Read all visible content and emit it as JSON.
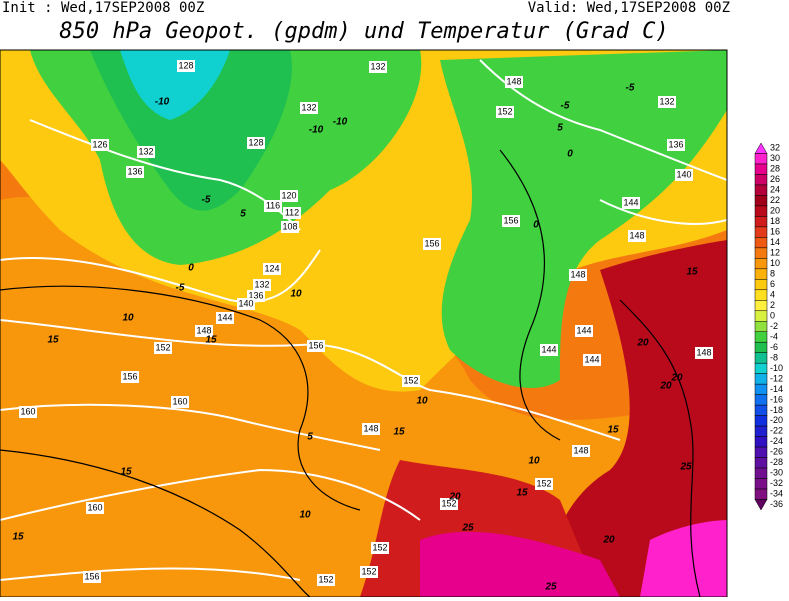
{
  "header": {
    "init": "Init : Wed,17SEP2008 00Z",
    "valid": "Valid: Wed,17SEP2008 00Z",
    "title": "850 hPa Geopot. (gpdm) und Temperatur (Grad C)"
  },
  "colorbar": {
    "levels": [
      32,
      30,
      28,
      26,
      24,
      22,
      20,
      18,
      16,
      14,
      12,
      10,
      8,
      6,
      4,
      2,
      0,
      -2,
      -4,
      -6,
      -8,
      -10,
      -12,
      -14,
      -16,
      -18,
      -20,
      -22,
      -24,
      -26,
      -28,
      -30,
      -32,
      -34,
      -36
    ],
    "colors": [
      "#ff33ff",
      "#ff22cc",
      "#e6008c",
      "#cc0066",
      "#b3003a",
      "#a0001a",
      "#b80a1a",
      "#d01c1c",
      "#e23a1a",
      "#ee5a14",
      "#f47a10",
      "#f8960c",
      "#fbb00a",
      "#fdca10",
      "#ffe020",
      "#fff040",
      "#d8f040",
      "#90e040",
      "#40d040",
      "#20c050",
      "#10c090",
      "#10d0d0",
      "#10b0e8",
      "#1090f0",
      "#1070f0",
      "#1050e8",
      "#1030e0",
      "#2020d0",
      "#3010c0",
      "#5010b0",
      "#6010a0",
      "#701090",
      "#7a1088",
      "#801080",
      "#600060"
    ]
  },
  "geopotential_labels": [
    128,
    132,
    126,
    132,
    136,
    128,
    120,
    116,
    112,
    108,
    124,
    132,
    136,
    140,
    144,
    148,
    152,
    156,
    160,
    160,
    160,
    156,
    156,
    152,
    148,
    152,
    152,
    148,
    156,
    156,
    152,
    148,
    132,
    136,
    140,
    144,
    148,
    148,
    144,
    144,
    144,
    148,
    152,
    152,
    152,
    132
  ],
  "temperature_labels": [
    -10,
    -5,
    0,
    -5,
    10,
    15,
    15,
    15,
    15,
    10,
    5,
    10,
    10,
    15,
    5,
    20,
    20,
    20,
    25,
    25,
    20,
    15,
    15,
    10,
    0,
    0,
    -5,
    -5,
    15,
    25,
    20,
    5,
    -10,
    -10
  ]
}
